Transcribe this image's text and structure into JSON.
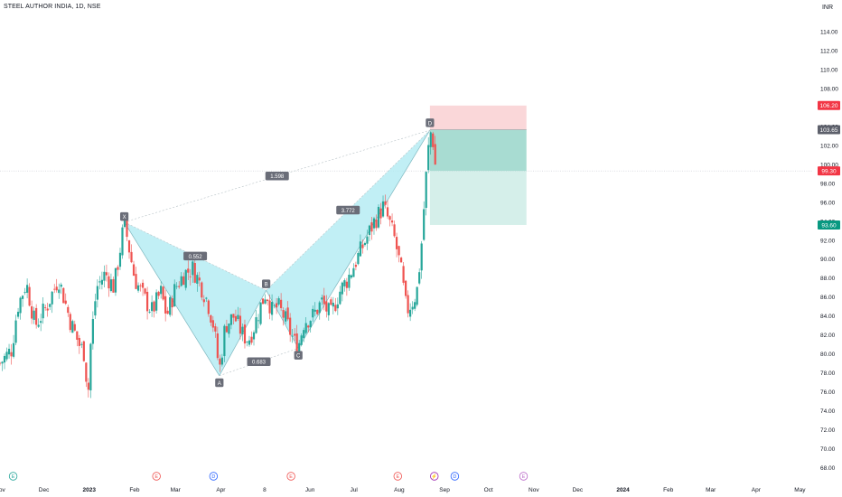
{
  "header": {
    "title": "STEEL AUTHOR INDIA, 1D, NSE",
    "currency": "INR"
  },
  "colors": {
    "up": "#26a69a",
    "down": "#ef5350",
    "pattern_fill": "#b2ebf2",
    "stop_zone": "#f8c9cc",
    "target_zone": "#b9e4dc",
    "badge_red": "#f23645",
    "badge_green": "#089981",
    "badge_gray": "#5d606b"
  },
  "chart_data": {
    "type": "candlestick",
    "y_axis": {
      "min": 67,
      "max": 116,
      "ticks": [
        68.0,
        70.0,
        72.0,
        74.0,
        76.0,
        78.0,
        80.0,
        82.0,
        84.0,
        86.0,
        88.0,
        90.0,
        92.0,
        94.0,
        96.0,
        98.0,
        100.0,
        102.0,
        104.0,
        106.0,
        108.0,
        110.0,
        112.0,
        114.0
      ],
      "tick_labels": [
        "68.00",
        "70.00",
        "72.00",
        "74.00",
        "76.00",
        "78.00",
        "80.00",
        "82.00",
        "84.00",
        "86.00",
        "88.00",
        "90.00",
        "92.00",
        "94.00",
        "96.00",
        "98.00",
        "100.00",
        "102.00",
        "104.00",
        "106.00",
        "108.00",
        "110.00",
        "112.00",
        "114.00"
      ]
    },
    "x_axis": {
      "labels": [
        "Nov",
        "Dec",
        "2023",
        "Feb",
        "Mar",
        "Apr",
        "8",
        "Jun",
        "Jul",
        "Aug",
        "Sep",
        "Oct",
        "Nov",
        "Dec",
        "2024",
        "Feb",
        "Mar",
        "Apr",
        "May"
      ],
      "bold": [
        "2023",
        "2024"
      ],
      "label_day_index": [
        0,
        30,
        61,
        92,
        120,
        151,
        181,
        212,
        242,
        273,
        304,
        334,
        365,
        395,
        426,
        457,
        486,
        517,
        547
      ],
      "day_range": [
        0,
        556
      ]
    },
    "price_badges": [
      {
        "label": "106.20",
        "value": 106.2,
        "color": "#f23645"
      },
      {
        "label": "103.65",
        "value": 103.65,
        "color": "#5d606b"
      },
      {
        "label": "99.30",
        "value": 99.3,
        "color": "#f23645"
      },
      {
        "label": "93.60",
        "value": 93.6,
        "color": "#089981"
      }
    ],
    "current_price": 99.3,
    "harmonic_pattern": {
      "points": [
        {
          "label": "X",
          "day": 85,
          "price": 93.9
        },
        {
          "label": "A",
          "day": 150,
          "price": 77.7
        },
        {
          "label": "B",
          "day": 182,
          "price": 86.7
        },
        {
          "label": "C",
          "day": 204,
          "price": 80.6
        },
        {
          "label": "D",
          "day": 294,
          "price": 103.6
        }
      ],
      "ratios": [
        {
          "label": "0.552",
          "between": [
            "X",
            "B"
          ]
        },
        {
          "label": "0.683",
          "between": [
            "A",
            "C"
          ]
        },
        {
          "label": "3.772",
          "between": [
            "B",
            "D"
          ]
        },
        {
          "label": "1.598",
          "between": [
            "X",
            "D"
          ]
        }
      ]
    },
    "position": {
      "start_day": 294,
      "end_day": 360,
      "entry": 103.65,
      "stop": 106.2,
      "target": 93.6
    },
    "events": [
      {
        "type": "E",
        "day": 9,
        "color": "#26a69a"
      },
      {
        "type": "E",
        "day": 107,
        "color": "#ef5350"
      },
      {
        "type": "D",
        "day": 146,
        "color": "#2962ff"
      },
      {
        "type": "E",
        "day": 199,
        "color": "#ef5350"
      },
      {
        "type": "E",
        "day": 272,
        "color": "#ef5350"
      },
      {
        "type": "⚡",
        "day": 297,
        "color": "#9c27b0"
      },
      {
        "type": "D",
        "day": 311,
        "color": "#2962ff"
      },
      {
        "type": "E",
        "day": 358,
        "color": "#ba68c8"
      }
    ],
    "path": [
      [
        0,
        79.0
      ],
      [
        8,
        80.5
      ],
      [
        12,
        85.0
      ],
      [
        18,
        87.5
      ],
      [
        24,
        83.0
      ],
      [
        32,
        85.0
      ],
      [
        40,
        88.0
      ],
      [
        48,
        83.5
      ],
      [
        54,
        81.0
      ],
      [
        58,
        80.0
      ],
      [
        60,
        75.0
      ],
      [
        62,
        81.0
      ],
      [
        66,
        87.0
      ],
      [
        72,
        88.5
      ],
      [
        78,
        87.0
      ],
      [
        85,
        93.9
      ],
      [
        92,
        88.0
      ],
      [
        98,
        86.0
      ],
      [
        104,
        84.5
      ],
      [
        110,
        86.5
      ],
      [
        114,
        84.0
      ],
      [
        120,
        87.0
      ],
      [
        126,
        88.5
      ],
      [
        132,
        89.0
      ],
      [
        138,
        87.0
      ],
      [
        142,
        85.5
      ],
      [
        146,
        83.0
      ],
      [
        150,
        78.2
      ],
      [
        154,
        83.0
      ],
      [
        160,
        84.0
      ],
      [
        166,
        82.0
      ],
      [
        170,
        81.5
      ],
      [
        174,
        83.0
      ],
      [
        178,
        85.0
      ],
      [
        182,
        86.6
      ],
      [
        186,
        84.5
      ],
      [
        190,
        85.0
      ],
      [
        194,
        84.0
      ],
      [
        198,
        82.5
      ],
      [
        202,
        81.0
      ],
      [
        204,
        80.8
      ],
      [
        208,
        83.5
      ],
      [
        214,
        84.0
      ],
      [
        220,
        85.5
      ],
      [
        226,
        84.0
      ],
      [
        232,
        86.5
      ],
      [
        238,
        88.0
      ],
      [
        244,
        90.0
      ],
      [
        250,
        92.0
      ],
      [
        256,
        94.0
      ],
      [
        262,
        95.5
      ],
      [
        266,
        94.0
      ],
      [
        270,
        92.0
      ],
      [
        274,
        89.0
      ],
      [
        278,
        84.5
      ],
      [
        282,
        85.5
      ],
      [
        285,
        86.5
      ],
      [
        288,
        91.0
      ],
      [
        291,
        98.0
      ],
      [
        294,
        103.6
      ],
      [
        296,
        102.5
      ],
      [
        298,
        99.3
      ]
    ]
  }
}
